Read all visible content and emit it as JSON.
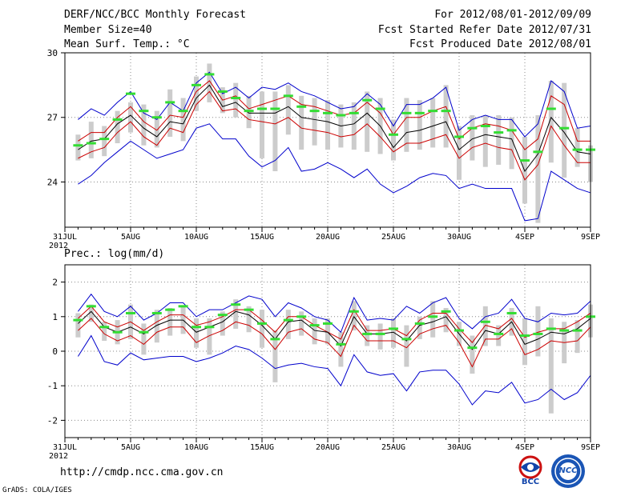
{
  "header": {
    "title": "DERF/NCC/BCC Monthly Forecast",
    "member_size": "Member Size=40",
    "variable": "Mean Surf. Temp.: °C",
    "period": "For 2012/08/01-2012/09/09",
    "refer_date": "Fcst Started Refer Date 2012/07/31",
    "produced_date": "Fcst Produced Date 2012/08/01"
  },
  "footer": {
    "url": "http://cmdp.ncc.cma.gov.cn",
    "credit": "GrADS: COLA/IGES",
    "logo_bcc": "BCC",
    "logo_ncc": "NCC"
  },
  "colors": {
    "mean": "#000000",
    "sd_band": "#cc0000",
    "extremes": "#0000cc",
    "observed_or_median": "#33dd33",
    "spread_bar": "#cccccc",
    "grid": "#888888"
  },
  "chart_data": [
    {
      "type": "line",
      "title": "Mean Surf. Temp.: °C",
      "x_start_label": "31JUL",
      "year_label": "2012",
      "x_ticks": [
        {
          "day": 0,
          "label": "31JUL"
        },
        {
          "day": 5,
          "label": "5AUG"
        },
        {
          "day": 10,
          "label": "10AUG"
        },
        {
          "day": 15,
          "label": "15AUG"
        },
        {
          "day": 20,
          "label": "20AUG"
        },
        {
          "day": 25,
          "label": "25AUG"
        },
        {
          "day": 30,
          "label": "30AUG"
        },
        {
          "day": 35,
          "label": "4SEP"
        },
        {
          "day": 40,
          "label": "9SEP"
        }
      ],
      "y_ticks": [
        24,
        27,
        30
      ],
      "ylim": [
        21.9,
        30
      ],
      "x": [
        1,
        2,
        3,
        4,
        5,
        6,
        7,
        8,
        9,
        10,
        11,
        12,
        13,
        14,
        15,
        16,
        17,
        18,
        19,
        20,
        21,
        22,
        23,
        24,
        25,
        26,
        27,
        28,
        29,
        30,
        31,
        32,
        33,
        34,
        35,
        36,
        37,
        38,
        39,
        40
      ],
      "series": [
        {
          "name": "max",
          "values": [
            26.9,
            27.4,
            27.1,
            27.7,
            28.2,
            27.2,
            26.9,
            27.7,
            27.3,
            28.6,
            29.1,
            28.1,
            28.4,
            27.9,
            28.4,
            28.3,
            28.6,
            28.2,
            28.0,
            27.7,
            27.4,
            27.5,
            28.1,
            27.6,
            26.6,
            27.6,
            27.6,
            27.9,
            28.4,
            26.4,
            26.9,
            27.1,
            26.9,
            26.9,
            26.1,
            26.7,
            28.7,
            28.2,
            26.5,
            26.6
          ]
        },
        {
          "name": "mean_plus_sd",
          "values": [
            25.9,
            26.3,
            26.3,
            27.0,
            27.5,
            26.8,
            26.4,
            27.1,
            27.0,
            28.2,
            28.7,
            27.8,
            28.0,
            27.4,
            27.6,
            27.8,
            28.0,
            27.6,
            27.5,
            27.3,
            27.1,
            27.2,
            27.7,
            27.2,
            26.2,
            27.0,
            27.0,
            27.3,
            27.5,
            26.0,
            26.5,
            26.7,
            26.6,
            26.4,
            25.5,
            26.0,
            28.0,
            27.6,
            25.9,
            25.9
          ]
        },
        {
          "name": "mean",
          "values": [
            25.5,
            25.9,
            26.0,
            26.7,
            27.1,
            26.5,
            26.1,
            26.8,
            26.7,
            27.9,
            28.5,
            27.5,
            27.7,
            27.2,
            27.2,
            27.2,
            27.5,
            27.0,
            26.9,
            26.8,
            26.6,
            26.7,
            27.2,
            26.6,
            25.6,
            26.3,
            26.4,
            26.6,
            26.8,
            25.5,
            26.0,
            26.2,
            26.1,
            26.0,
            24.5,
            25.3,
            27.0,
            26.3,
            25.4,
            25.3
          ]
        },
        {
          "name": "mean_minus_sd",
          "values": [
            25.1,
            25.4,
            25.6,
            26.3,
            26.8,
            26.1,
            25.7,
            26.5,
            26.3,
            27.6,
            28.2,
            27.3,
            27.4,
            26.9,
            26.8,
            26.7,
            27.0,
            26.5,
            26.4,
            26.3,
            26.1,
            26.2,
            26.7,
            26.1,
            25.4,
            25.8,
            25.8,
            26.0,
            26.2,
            25.1,
            25.6,
            25.8,
            25.6,
            25.5,
            24.1,
            24.8,
            26.6,
            25.7,
            24.9,
            24.9
          ]
        },
        {
          "name": "min",
          "values": [
            23.9,
            24.3,
            24.9,
            25.4,
            25.9,
            25.5,
            25.1,
            25.3,
            25.5,
            26.5,
            26.7,
            26.0,
            26.0,
            25.2,
            24.7,
            25.0,
            25.6,
            24.5,
            24.6,
            24.9,
            24.6,
            24.2,
            24.6,
            23.9,
            23.5,
            23.8,
            24.2,
            24.4,
            24.3,
            23.7,
            23.9,
            23.7,
            23.7,
            23.7,
            22.2,
            22.3,
            24.5,
            24.1,
            23.7,
            23.5
          ]
        },
        {
          "name": "observed",
          "values": [
            25.7,
            25.8,
            26.0,
            26.9,
            28.1,
            27.3,
            27.0,
            27.7,
            27.3,
            28.5,
            29.0,
            28.2,
            27.9,
            27.3,
            27.4,
            27.4,
            28.0,
            27.5,
            27.3,
            27.2,
            27.1,
            27.2,
            27.8,
            27.4,
            26.2,
            27.2,
            27.2,
            27.3,
            27.3,
            26.1,
            26.5,
            26.6,
            26.3,
            26.4,
            25.0,
            25.4,
            27.4,
            26.5,
            25.5,
            25.5
          ]
        }
      ],
      "spread_bars": {
        "upper": [
          26.2,
          26.8,
          26.6,
          27.3,
          27.7,
          27.6,
          27.3,
          28.3,
          27.9,
          28.9,
          29.5,
          28.4,
          28.6,
          28.0,
          28.2,
          28.2,
          28.5,
          28.0,
          27.9,
          27.8,
          27.6,
          27.7,
          28.2,
          27.9,
          26.9,
          27.9,
          27.8,
          27.9,
          28.5,
          26.6,
          27.1,
          27.1,
          27.1,
          27.0,
          26.1,
          27.1,
          28.7,
          28.6,
          26.5,
          25.7
        ],
        "lower": [
          25.0,
          25.1,
          25.2,
          25.8,
          26.3,
          25.7,
          25.6,
          26.1,
          25.9,
          27.3,
          27.7,
          27.2,
          27.0,
          26.5,
          25.1,
          24.5,
          26.2,
          25.5,
          25.7,
          25.5,
          25.6,
          25.5,
          25.4,
          25.3,
          25.0,
          25.4,
          25.5,
          25.6,
          25.6,
          24.1,
          25.0,
          24.7,
          24.8,
          24.6,
          23.0,
          22.1,
          24.9,
          24.2,
          24.7,
          24.0
        ]
      }
    },
    {
      "type": "line",
      "title": "Prec.: log(mm/d)",
      "x_start_label": "31JUL",
      "year_label": "2012",
      "x_ticks": [
        {
          "day": 0,
          "label": "31JUL"
        },
        {
          "day": 5,
          "label": "5AUG"
        },
        {
          "day": 10,
          "label": "10AUG"
        },
        {
          "day": 15,
          "label": "15AUG"
        },
        {
          "day": 20,
          "label": "20AUG"
        },
        {
          "day": 25,
          "label": "25AUG"
        },
        {
          "day": 30,
          "label": "30AUG"
        },
        {
          "day": 35,
          "label": "4SEP"
        },
        {
          "day": 40,
          "label": "9SEP"
        }
      ],
      "y_ticks": [
        -2,
        -1,
        0,
        1,
        2
      ],
      "ylim": [
        -2.5,
        2.5
      ],
      "x": [
        1,
        2,
        3,
        4,
        5,
        6,
        7,
        8,
        9,
        10,
        11,
        12,
        13,
        14,
        15,
        16,
        17,
        18,
        19,
        20,
        21,
        22,
        23,
        24,
        25,
        26,
        27,
        28,
        29,
        30,
        31,
        32,
        33,
        34,
        35,
        36,
        37,
        38,
        39,
        40
      ],
      "series": [
        {
          "name": "max",
          "values": [
            1.15,
            1.65,
            1.15,
            1.0,
            1.3,
            0.9,
            1.1,
            1.4,
            1.4,
            1.0,
            1.2,
            1.2,
            1.4,
            1.6,
            1.5,
            1.0,
            1.4,
            1.25,
            1.0,
            0.9,
            0.55,
            1.55,
            0.9,
            0.95,
            0.9,
            1.3,
            1.1,
            1.4,
            1.55,
            0.95,
            0.65,
            1.0,
            1.1,
            1.5,
            0.95,
            0.85,
            1.1,
            1.05,
            1.1,
            1.45
          ]
        },
        {
          "name": "mean_plus_sd",
          "values": [
            0.95,
            1.3,
            0.85,
            0.7,
            0.85,
            0.6,
            0.85,
            1.05,
            1.05,
            0.75,
            0.85,
            1.0,
            1.2,
            1.2,
            0.9,
            0.55,
            1.0,
            1.0,
            0.75,
            0.55,
            0.35,
            1.2,
            0.6,
            0.6,
            0.65,
            0.45,
            0.9,
            1.1,
            1.1,
            0.65,
            0.25,
            0.75,
            0.65,
            0.95,
            0.4,
            0.55,
            0.65,
            0.65,
            0.85,
            1.1
          ]
        },
        {
          "name": "mean",
          "values": [
            0.8,
            1.15,
            0.7,
            0.55,
            0.7,
            0.5,
            0.75,
            0.9,
            0.9,
            0.55,
            0.7,
            0.85,
            1.15,
            1.05,
            0.75,
            0.35,
            0.85,
            0.9,
            0.6,
            0.55,
            0.15,
            1.0,
            0.5,
            0.5,
            0.55,
            0.3,
            0.75,
            0.85,
            1.0,
            0.5,
            0.05,
            0.6,
            0.5,
            0.85,
            0.2,
            0.35,
            0.55,
            0.5,
            0.65,
            0.95
          ]
        },
        {
          "name": "mean_minus_sd",
          "values": [
            0.6,
            0.95,
            0.5,
            0.3,
            0.45,
            0.2,
            0.55,
            0.7,
            0.7,
            0.25,
            0.45,
            0.6,
            0.85,
            0.75,
            0.5,
            0.05,
            0.55,
            0.65,
            0.35,
            0.25,
            -0.15,
            0.75,
            0.3,
            0.3,
            0.3,
            0.1,
            0.5,
            0.65,
            0.75,
            0.25,
            -0.45,
            0.35,
            0.35,
            0.65,
            -0.1,
            0.05,
            0.3,
            0.25,
            0.3,
            0.7
          ]
        },
        {
          "name": "min",
          "values": [
            -0.15,
            0.45,
            -0.3,
            -0.4,
            -0.05,
            -0.25,
            -0.2,
            -0.15,
            -0.15,
            -0.3,
            -0.2,
            -0.05,
            0.15,
            0.05,
            -0.2,
            -0.5,
            -0.4,
            -0.35,
            -0.45,
            -0.5,
            -1.0,
            -0.1,
            -0.6,
            -0.7,
            -0.65,
            -1.15,
            -0.6,
            -0.55,
            -0.55,
            -0.95,
            -1.55,
            -1.15,
            -1.2,
            -0.9,
            -1.5,
            -1.4,
            -1.1,
            -1.4,
            -1.2,
            -0.7
          ]
        },
        {
          "name": "observed",
          "values": [
            0.9,
            1.3,
            0.7,
            0.55,
            1.1,
            0.55,
            1.1,
            1.2,
            1.3,
            0.7,
            0.7,
            1.05,
            1.35,
            1.2,
            0.8,
            0.35,
            0.9,
            1.0,
            0.75,
            0.8,
            0.2,
            1.15,
            0.5,
            0.5,
            0.65,
            0.35,
            0.8,
            1.0,
            1.15,
            0.6,
            0.1,
            0.85,
            0.5,
            1.1,
            0.45,
            0.5,
            0.65,
            0.6,
            0.6,
            1.0
          ]
        }
      ],
      "spread_bars": {
        "upper": [
          1.1,
          1.35,
          0.85,
          0.9,
          1.35,
          0.8,
          1.2,
          1.25,
          1.3,
          0.95,
          0.95,
          1.15,
          1.5,
          1.3,
          1.2,
          0.6,
          1.2,
          1.15,
          0.95,
          0.95,
          0.55,
          1.45,
          0.75,
          0.8,
          0.95,
          0.75,
          1.0,
          1.45,
          1.25,
          0.85,
          0.45,
          1.3,
          0.75,
          1.25,
          0.95,
          1.3,
          0.95,
          0.85,
          0.9,
          1.35
        ],
        "lower": [
          0.4,
          0.85,
          0.3,
          0.2,
          0.35,
          -0.1,
          0.25,
          0.45,
          0.5,
          0.1,
          -0.1,
          0.45,
          0.65,
          0.55,
          0.1,
          -0.9,
          0.35,
          0.45,
          0.2,
          0.2,
          -0.45,
          0.6,
          0.15,
          0.05,
          0.1,
          -0.45,
          0.35,
          0.4,
          0.55,
          0.15,
          -0.65,
          0.15,
          0.15,
          0.45,
          -0.4,
          -0.15,
          -1.8,
          -0.35,
          -0.05,
          0.4
        ]
      }
    }
  ]
}
